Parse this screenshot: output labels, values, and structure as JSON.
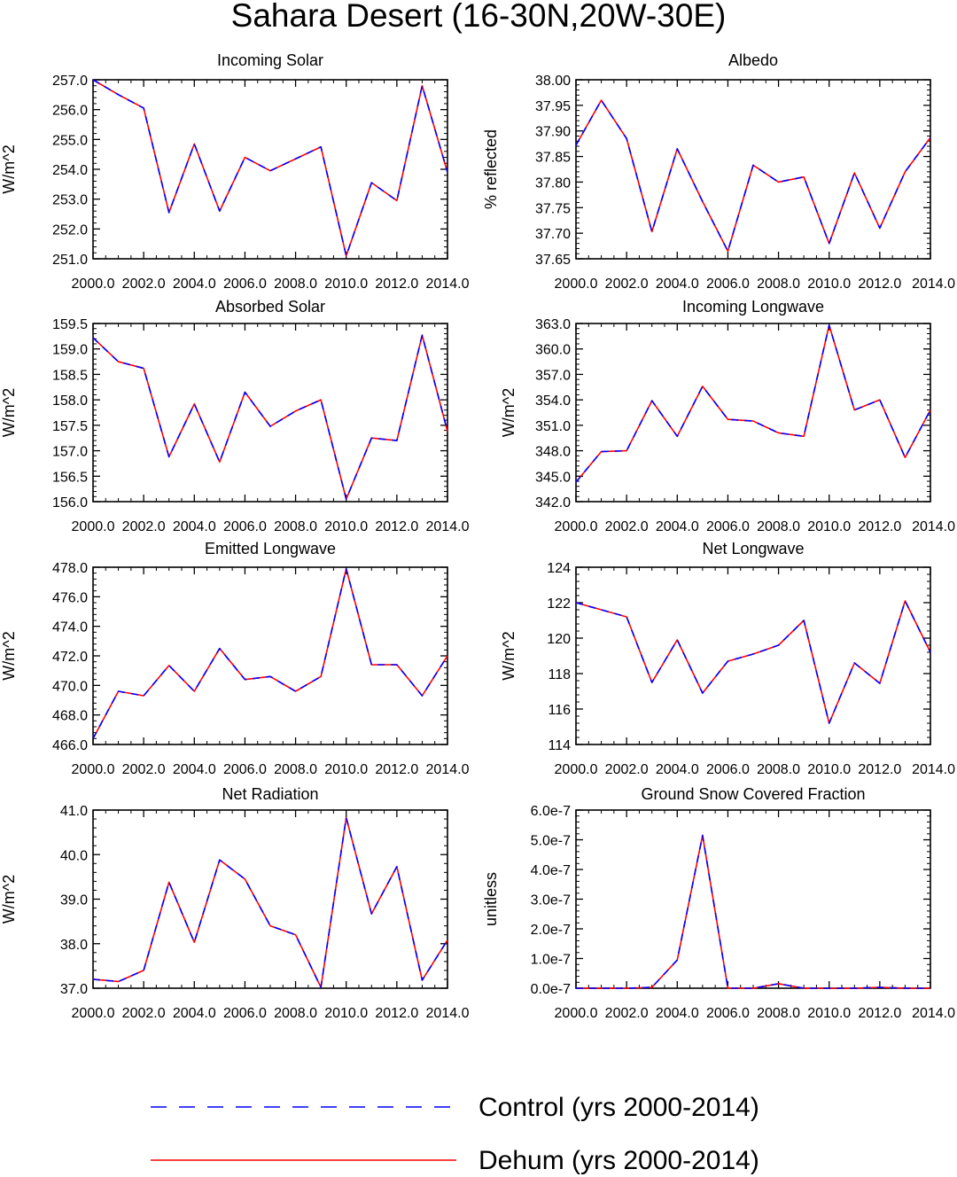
{
  "figure_title": "Sahara Desert (16-30N,20W-30E)",
  "chart_data": [
    {
      "type": "line",
      "title": "Incoming Solar",
      "xlabel": "",
      "ylabel": "W/m^2",
      "x": [
        2000,
        2001,
        2002,
        2003,
        2004,
        2005,
        2006,
        2007,
        2008,
        2009,
        2010,
        2011,
        2012,
        2013,
        2014
      ],
      "xlim": [
        2000,
        2014
      ],
      "xticks": [
        2000,
        2002,
        2004,
        2006,
        2008,
        2010,
        2012,
        2014
      ],
      "xtick_labels": [
        "2000.0",
        "2002.0",
        "2004.0",
        "2006.0",
        "2008.0",
        "2010.0",
        "2012.0",
        "2014.0"
      ],
      "ylim": [
        251.0,
        257.0
      ],
      "yticks": [
        251.0,
        252.0,
        253.0,
        254.0,
        255.0,
        256.0,
        257.0
      ],
      "ytick_labels": [
        "251.0",
        "252.0",
        "253.0",
        "254.0",
        "255.0",
        "256.0",
        "257.0"
      ],
      "series": [
        {
          "name": "Control (yrs 2000-2014)",
          "values": [
            257.0,
            256.5,
            256.05,
            252.55,
            254.85,
            252.6,
            254.4,
            253.95,
            254.35,
            254.75,
            251.1,
            253.55,
            252.95,
            256.8,
            253.9
          ]
        },
        {
          "name": "Dehum (yrs 2000-2014)",
          "values": [
            257.0,
            256.5,
            256.05,
            252.55,
            254.85,
            252.6,
            254.4,
            253.95,
            254.35,
            254.75,
            251.1,
            253.55,
            252.95,
            256.8,
            253.9
          ]
        }
      ]
    },
    {
      "type": "line",
      "title": "Albedo",
      "xlabel": "",
      "ylabel": "% reflected",
      "x": [
        2000,
        2001,
        2002,
        2003,
        2004,
        2005,
        2006,
        2007,
        2008,
        2009,
        2010,
        2011,
        2012,
        2013,
        2014
      ],
      "xlim": [
        2000,
        2014
      ],
      "xticks": [
        2000,
        2002,
        2004,
        2006,
        2008,
        2010,
        2012,
        2014
      ],
      "xtick_labels": [
        "2000.0",
        "2002.0",
        "2004.0",
        "2006.0",
        "2008.0",
        "2010.0",
        "2012.0",
        "2014.0"
      ],
      "ylim": [
        37.65,
        38.0
      ],
      "yticks": [
        37.65,
        37.7,
        37.75,
        37.8,
        37.85,
        37.9,
        37.95,
        38.0
      ],
      "ytick_labels": [
        "37.65",
        "37.70",
        "37.75",
        "37.80",
        "37.85",
        "37.90",
        "37.95",
        "38.00"
      ],
      "series": [
        {
          "name": "Control (yrs 2000-2014)",
          "values": [
            37.872,
            37.96,
            37.885,
            37.703,
            37.865,
            37.762,
            37.665,
            37.833,
            37.8,
            37.81,
            37.68,
            37.818,
            37.71,
            37.82,
            37.887
          ]
        },
        {
          "name": "Dehum (yrs 2000-2014)",
          "values": [
            37.872,
            37.96,
            37.885,
            37.703,
            37.865,
            37.762,
            37.665,
            37.833,
            37.8,
            37.81,
            37.68,
            37.818,
            37.71,
            37.82,
            37.887
          ]
        }
      ]
    },
    {
      "type": "line",
      "title": "Absorbed Solar",
      "xlabel": "",
      "ylabel": "W/m^2",
      "x": [
        2000,
        2001,
        2002,
        2003,
        2004,
        2005,
        2006,
        2007,
        2008,
        2009,
        2010,
        2011,
        2012,
        2013,
        2014
      ],
      "xlim": [
        2000,
        2014
      ],
      "xticks": [
        2000,
        2002,
        2004,
        2006,
        2008,
        2010,
        2012,
        2014
      ],
      "xtick_labels": [
        "2000.0",
        "2002.0",
        "2004.0",
        "2006.0",
        "2008.0",
        "2010.0",
        "2012.0",
        "2014.0"
      ],
      "ylim": [
        156.0,
        159.5
      ],
      "yticks": [
        156.0,
        156.5,
        157.0,
        157.5,
        158.0,
        158.5,
        159.0,
        159.5
      ],
      "ytick_labels": [
        "156.0",
        "156.5",
        "157.0",
        "157.5",
        "158.0",
        "158.5",
        "159.0",
        "159.5"
      ],
      "series": [
        {
          "name": "Control (yrs 2000-2014)",
          "values": [
            159.22,
            158.75,
            158.62,
            156.88,
            157.92,
            156.78,
            158.15,
            157.48,
            157.78,
            158.0,
            156.05,
            157.25,
            157.2,
            159.27,
            157.38
          ]
        },
        {
          "name": "Dehum (yrs 2000-2014)",
          "values": [
            159.22,
            158.75,
            158.62,
            156.88,
            157.92,
            156.78,
            158.15,
            157.48,
            157.78,
            158.0,
            156.05,
            157.25,
            157.2,
            159.27,
            157.38
          ]
        }
      ]
    },
    {
      "type": "line",
      "title": "Incoming Longwave",
      "xlabel": "",
      "ylabel": "W/m^2",
      "x": [
        2000,
        2001,
        2002,
        2003,
        2004,
        2005,
        2006,
        2007,
        2008,
        2009,
        2010,
        2011,
        2012,
        2013,
        2014
      ],
      "xlim": [
        2000,
        2014
      ],
      "xticks": [
        2000,
        2002,
        2004,
        2006,
        2008,
        2010,
        2012,
        2014
      ],
      "xtick_labels": [
        "2000.0",
        "2002.0",
        "2004.0",
        "2006.0",
        "2008.0",
        "2010.0",
        "2012.0",
        "2014.0"
      ],
      "ylim": [
        342.0,
        363.0
      ],
      "yticks": [
        342.0,
        345.0,
        348.0,
        351.0,
        354.0,
        357.0,
        360.0,
        363.0
      ],
      "ytick_labels": [
        "342.0",
        "345.0",
        "348.0",
        "351.0",
        "354.0",
        "357.0",
        "360.0",
        "363.0"
      ],
      "series": [
        {
          "name": "Control (yrs 2000-2014)",
          "values": [
            344.3,
            347.9,
            348.0,
            353.9,
            349.7,
            355.6,
            351.7,
            351.5,
            350.1,
            349.7,
            362.8,
            352.8,
            354.0,
            347.2,
            352.8
          ]
        },
        {
          "name": "Dehum (yrs 2000-2014)",
          "values": [
            344.3,
            347.9,
            348.0,
            353.9,
            349.7,
            355.6,
            351.7,
            351.5,
            350.1,
            349.7,
            362.8,
            352.8,
            354.0,
            347.2,
            352.8
          ]
        }
      ]
    },
    {
      "type": "line",
      "title": "Emitted Longwave",
      "xlabel": "",
      "ylabel": "W/m^2",
      "x": [
        2000,
        2001,
        2002,
        2003,
        2004,
        2005,
        2006,
        2007,
        2008,
        2009,
        2010,
        2011,
        2012,
        2013,
        2014
      ],
      "xlim": [
        2000,
        2014
      ],
      "xticks": [
        2000,
        2002,
        2004,
        2006,
        2008,
        2010,
        2012,
        2014
      ],
      "xtick_labels": [
        "2000.0",
        "2002.0",
        "2004.0",
        "2006.0",
        "2008.0",
        "2010.0",
        "2012.0",
        "2014.0"
      ],
      "ylim": [
        466.0,
        478.0
      ],
      "yticks": [
        466.0,
        468.0,
        470.0,
        472.0,
        474.0,
        476.0,
        478.0
      ],
      "ytick_labels": [
        "466.0",
        "468.0",
        "470.0",
        "472.0",
        "474.0",
        "476.0",
        "478.0"
      ],
      "series": [
        {
          "name": "Control (yrs 2000-2014)",
          "values": [
            466.4,
            469.6,
            469.3,
            471.35,
            469.6,
            472.5,
            470.4,
            470.6,
            469.6,
            470.6,
            477.9,
            471.4,
            471.4,
            469.3,
            472.0
          ]
        },
        {
          "name": "Dehum (yrs 2000-2014)",
          "values": [
            466.4,
            469.6,
            469.3,
            471.35,
            469.6,
            472.5,
            470.4,
            470.6,
            469.6,
            470.6,
            477.9,
            471.4,
            471.4,
            469.3,
            472.0
          ]
        }
      ]
    },
    {
      "type": "line",
      "title": "Net Longwave",
      "xlabel": "",
      "ylabel": "W/m^2",
      "x": [
        2000,
        2001,
        2002,
        2003,
        2004,
        2005,
        2006,
        2007,
        2008,
        2009,
        2010,
        2011,
        2012,
        2013,
        2014
      ],
      "xlim": [
        2000,
        2014
      ],
      "xticks": [
        2000,
        2002,
        2004,
        2006,
        2008,
        2010,
        2012,
        2014
      ],
      "xtick_labels": [
        "2000.0",
        "2002.0",
        "2004.0",
        "2006.0",
        "2008.0",
        "2010.0",
        "2012.0",
        "2014.0"
      ],
      "ylim": [
        114.0,
        124.0
      ],
      "yticks": [
        114,
        116,
        118,
        120,
        122,
        124
      ],
      "ytick_labels": [
        "114",
        "116",
        "118",
        "120",
        "122",
        "124"
      ],
      "series": [
        {
          "name": "Control (yrs 2000-2014)",
          "values": [
            122.0,
            121.6,
            121.2,
            117.5,
            119.9,
            116.9,
            118.7,
            119.1,
            119.6,
            121.0,
            115.2,
            118.6,
            117.45,
            122.1,
            119.2
          ]
        },
        {
          "name": "Dehum (yrs 2000-2014)",
          "values": [
            122.0,
            121.6,
            121.2,
            117.5,
            119.9,
            116.9,
            118.7,
            119.1,
            119.6,
            121.0,
            115.2,
            118.6,
            117.45,
            122.1,
            119.2
          ]
        }
      ]
    },
    {
      "type": "line",
      "title": "Net Radiation",
      "xlabel": "",
      "ylabel": "W/m^2",
      "x": [
        2000,
        2001,
        2002,
        2003,
        2004,
        2005,
        2006,
        2007,
        2008,
        2009,
        2010,
        2011,
        2012,
        2013,
        2014
      ],
      "xlim": [
        2000,
        2014
      ],
      "xticks": [
        2000,
        2002,
        2004,
        2006,
        2008,
        2010,
        2012,
        2014
      ],
      "xtick_labels": [
        "2000.0",
        "2002.0",
        "2004.0",
        "2006.0",
        "2008.0",
        "2010.0",
        "2012.0",
        "2014.0"
      ],
      "ylim": [
        37.0,
        41.0
      ],
      "yticks": [
        37.0,
        38.0,
        39.0,
        40.0,
        41.0
      ],
      "ytick_labels": [
        "37.0",
        "38.0",
        "39.0",
        "40.0",
        "41.0"
      ],
      "series": [
        {
          "name": "Control (yrs 2000-2014)",
          "values": [
            37.2,
            37.15,
            37.4,
            39.38,
            38.03,
            39.88,
            39.45,
            38.4,
            38.2,
            37.02,
            40.83,
            38.67,
            39.73,
            37.18,
            38.08
          ]
        },
        {
          "name": "Dehum (yrs 2000-2014)",
          "values": [
            37.2,
            37.15,
            37.4,
            39.38,
            38.03,
            39.88,
            39.45,
            38.4,
            38.2,
            37.02,
            40.83,
            38.67,
            39.73,
            37.18,
            38.08
          ]
        }
      ]
    },
    {
      "type": "line",
      "title": "Ground Snow Covered Fraction",
      "xlabel": "",
      "ylabel": "unitless",
      "x": [
        2000,
        2001,
        2002,
        2003,
        2004,
        2005,
        2006,
        2007,
        2008,
        2009,
        2010,
        2011,
        2012,
        2013,
        2014
      ],
      "xlim": [
        2000,
        2014
      ],
      "xticks": [
        2000,
        2002,
        2004,
        2006,
        2008,
        2010,
        2012,
        2014
      ],
      "xtick_labels": [
        "2000.0",
        "2002.0",
        "2004.0",
        "2006.0",
        "2008.0",
        "2010.0",
        "2012.0",
        "2014.0"
      ],
      "ylim": [
        0.0,
        6e-07
      ],
      "yticks": [
        0.0,
        1e-07,
        2e-07,
        3e-07,
        4e-07,
        5e-07,
        6e-07
      ],
      "ytick_labels": [
        "0.0e-7",
        "1.0e-7",
        "2.0e-7",
        "3.0e-7",
        "4.0e-7",
        "5.0e-7",
        "6.0e-7"
      ],
      "series": [
        {
          "name": "Control (yrs 2000-2014)",
          "values": [
            0.0,
            0.0,
            0.0,
            3e-09,
            9.5e-08,
            5.15e-07,
            0.0,
            0.0,
            1.5e-08,
            0.0,
            0.0,
            0.0,
            3e-09,
            0.0,
            0.0
          ]
        },
        {
          "name": "Dehum (yrs 2000-2014)",
          "values": [
            0.0,
            0.0,
            0.0,
            3e-09,
            9.5e-08,
            5.15e-07,
            0.0,
            0.0,
            1.5e-08,
            0.0,
            0.0,
            0.0,
            3e-09,
            0.0,
            0.0
          ]
        }
      ]
    }
  ],
  "legend": {
    "items": [
      {
        "label": "Control (yrs 2000-2014)",
        "color": "#0000ff",
        "style": "dashed"
      },
      {
        "label": "Dehum (yrs 2000-2014)",
        "color": "#ff0000",
        "style": "solid"
      }
    ]
  },
  "colors": {
    "control": "#0000ff",
    "dehum": "#ff0000",
    "axis": "#000000"
  }
}
